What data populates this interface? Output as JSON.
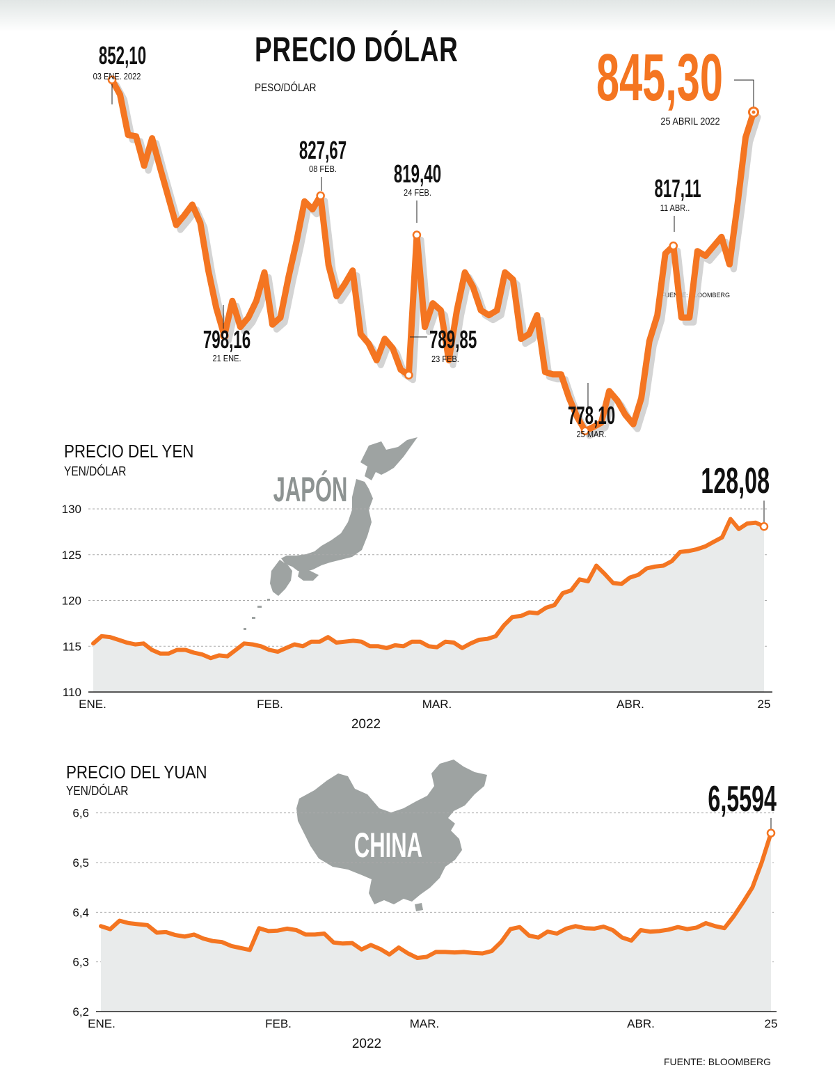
{
  "dolar": {
    "title": "PRECIO DÓLAR",
    "unit": "PESO/DÓLAR",
    "source": "FUENTE: BLOOMBERG",
    "colors": {
      "line": "#f47521",
      "shadow": "#c9c9c9",
      "marker_fill": "#ffffff"
    },
    "chart_data": {
      "type": "line",
      "title": "PRECIO DÓLAR",
      "ylabel": "PESO/DÓLAR",
      "x": [
        "2022-01-03",
        "2022-01-04",
        "2022-01-05",
        "2022-01-06",
        "2022-01-07",
        "2022-01-10",
        "2022-01-11",
        "2022-01-12",
        "2022-01-13",
        "2022-01-14",
        "2022-01-17",
        "2022-01-18",
        "2022-01-19",
        "2022-01-20",
        "2022-01-21",
        "2022-01-24",
        "2022-01-25",
        "2022-01-26",
        "2022-01-27",
        "2022-01-28",
        "2022-01-31",
        "2022-02-01",
        "2022-02-02",
        "2022-02-03",
        "2022-02-04",
        "2022-02-07",
        "2022-02-08",
        "2022-02-09",
        "2022-02-10",
        "2022-02-11",
        "2022-02-14",
        "2022-02-15",
        "2022-02-16",
        "2022-02-17",
        "2022-02-18",
        "2022-02-21",
        "2022-02-22",
        "2022-02-23",
        "2022-02-24",
        "2022-02-25",
        "2022-02-28",
        "2022-03-01",
        "2022-03-02",
        "2022-03-03",
        "2022-03-04",
        "2022-03-07",
        "2022-03-08",
        "2022-03-09",
        "2022-03-10",
        "2022-03-11",
        "2022-03-14",
        "2022-03-15",
        "2022-03-16",
        "2022-03-17",
        "2022-03-18",
        "2022-03-21",
        "2022-03-22",
        "2022-03-23",
        "2022-03-24",
        "2022-03-25",
        "2022-03-28",
        "2022-03-29",
        "2022-03-30",
        "2022-03-31",
        "2022-04-01",
        "2022-04-04",
        "2022-04-05",
        "2022-04-06",
        "2022-04-07",
        "2022-04-08",
        "2022-04-11",
        "2022-04-12",
        "2022-04-13",
        "2022-04-14",
        "2022-04-15",
        "2022-04-18",
        "2022-04-19",
        "2022-04-20",
        "2022-04-21",
        "2022-04-22",
        "2022-04-25"
      ],
      "values": [
        852.1,
        849.0,
        840.5,
        840.2,
        834.0,
        839.8,
        833.5,
        827.5,
        821.5,
        823.5,
        825.8,
        822.0,
        812.0,
        804.0,
        798.16,
        805.5,
        800.0,
        802.0,
        805.5,
        811.5,
        800.5,
        802.0,
        810.5,
        818.0,
        826.5,
        824.8,
        827.67,
        813.0,
        806.5,
        809.0,
        811.9,
        798.5,
        796.5,
        793.0,
        797.5,
        795.5,
        791.0,
        789.85,
        819.4,
        800.0,
        805.0,
        803.5,
        793.0,
        803.5,
        811.5,
        808.5,
        803.5,
        802.5,
        803.5,
        811.5,
        810.0,
        797.5,
        798.5,
        802.5,
        790.5,
        790.0,
        790.0,
        785.0,
        781.0,
        778.1,
        778.9,
        779.8,
        786.5,
        784.5,
        781.5,
        779.5,
        785.0,
        797.0,
        802.5,
        815.5,
        817.11,
        802.0,
        802.0,
        816.0,
        815.0,
        817.0,
        819.0,
        813.2,
        826.0,
        840.0,
        845.3
      ],
      "ylim": [
        775,
        855
      ],
      "annotations": [
        {
          "value": "852,10",
          "date": "03 ENE. 2022"
        },
        {
          "value": "798,16",
          "date": "21 ENE."
        },
        {
          "value": "827,67",
          "date": "08 FEB."
        },
        {
          "value": "819,40",
          "date": "24 FEB."
        },
        {
          "value": "789,85",
          "date": "23 FEB."
        },
        {
          "value": "778,10",
          "date": "25 MAR."
        },
        {
          "value": "817,11",
          "date": "11 ABR.."
        },
        {
          "value": "845,30",
          "date": "25 ABRIL 2022"
        }
      ]
    }
  },
  "yen": {
    "title": "PRECIO DEL YEN",
    "unit": "YEN/DÓLAR",
    "map_label": "JAPÓN",
    "year": "2022",
    "last_value": "128,08",
    "colors": {
      "line": "#f47521",
      "area": "#e9ebeb",
      "grid": "#aaaaaa",
      "map": "#9ea3a2",
      "map_text": "#8d9392"
    },
    "chart_data": {
      "type": "area",
      "ylabel": "YEN/DÓLAR",
      "x_ticks": [
        "ENE.",
        "FEB.",
        "MAR.",
        "ABR.",
        "25"
      ],
      "y_ticks": [
        "110",
        "115",
        "120",
        "125",
        "130"
      ],
      "ylim": [
        110,
        130
      ],
      "grid": true,
      "values": [
        115.3,
        116.1,
        116.0,
        115.7,
        115.4,
        115.2,
        115.3,
        114.6,
        114.2,
        114.2,
        114.6,
        114.6,
        114.3,
        114.1,
        113.7,
        114.0,
        113.9,
        114.6,
        115.3,
        115.2,
        115.0,
        114.6,
        114.4,
        114.8,
        115.2,
        115.0,
        115.5,
        115.5,
        116.0,
        115.4,
        115.5,
        115.6,
        115.5,
        115.0,
        115.0,
        114.8,
        115.1,
        115.0,
        115.5,
        115.5,
        115.0,
        114.9,
        115.5,
        115.4,
        114.8,
        115.3,
        115.7,
        115.8,
        116.1,
        117.3,
        118.2,
        118.3,
        118.7,
        118.6,
        119.2,
        119.5,
        120.8,
        121.1,
        122.3,
        122.1,
        123.8,
        122.9,
        121.9,
        121.8,
        122.5,
        122.8,
        123.5,
        123.7,
        123.8,
        124.3,
        125.3,
        125.4,
        125.6,
        125.9,
        126.4,
        126.9,
        128.9,
        127.8,
        128.4,
        128.5,
        128.08
      ]
    }
  },
  "yuan": {
    "title": "PRECIO DEL YUAN",
    "unit": "YEN/DÓLAR",
    "map_label": "CHINA",
    "year": "2022",
    "last_value": "6,5594",
    "source": "FUENTE: BLOOMBERG",
    "colors": {
      "line": "#f47521",
      "area": "#e9ebeb",
      "grid": "#aaaaaa",
      "map": "#9ea3a2",
      "map_text": "#ffffff"
    },
    "chart_data": {
      "type": "area",
      "ylabel": "YEN/DÓLAR",
      "x_ticks": [
        "ENE.",
        "FEB.",
        "MAR.",
        "ABR.",
        "25"
      ],
      "y_ticks": [
        "6,2",
        "6,3",
        "6,4",
        "6,5",
        "6,6"
      ],
      "ylim": [
        6.2,
        6.65
      ],
      "grid": true,
      "values": [
        6.372,
        6.366,
        6.383,
        6.378,
        6.376,
        6.374,
        6.359,
        6.36,
        6.354,
        6.351,
        6.355,
        6.347,
        6.342,
        6.34,
        6.332,
        6.328,
        6.324,
        6.368,
        6.362,
        6.363,
        6.367,
        6.364,
        6.355,
        6.355,
        6.357,
        6.339,
        6.337,
        6.338,
        6.325,
        6.334,
        6.326,
        6.315,
        6.329,
        6.317,
        6.308,
        6.31,
        6.32,
        6.32,
        6.319,
        6.32,
        6.318,
        6.317,
        6.322,
        6.34,
        6.366,
        6.37,
        6.353,
        6.349,
        6.361,
        6.357,
        6.367,
        6.372,
        6.368,
        6.367,
        6.371,
        6.364,
        6.349,
        6.343,
        6.364,
        6.361,
        6.362,
        6.365,
        6.37,
        6.366,
        6.369,
        6.378,
        6.372,
        6.368,
        6.392,
        6.42,
        6.45,
        6.5,
        6.5594
      ]
    }
  }
}
